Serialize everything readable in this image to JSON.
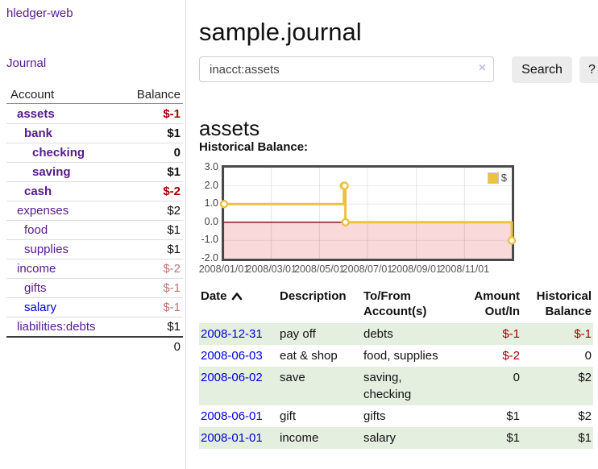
{
  "colors": {
    "purple_link": "#551a8b",
    "blue_link": "#0000dd",
    "negative": "#a00000",
    "negative_soft": "#b97676",
    "row_green": "#e4efdf",
    "series_yellow": "#edc240",
    "region_pink": "#f9d9d9",
    "zero_line": "#8c1717",
    "plot_border": "#4a4a4a",
    "grid": "#e4e4e4",
    "axis_text": "#545454"
  },
  "sidebar": {
    "title": "hledger-web",
    "nav_journal": "Journal",
    "table": {
      "account_header": "Account",
      "balance_header": "Balance",
      "rows": [
        {
          "name": "assets",
          "level": 1,
          "bold": true,
          "balance": "$-1",
          "bal_style": "neg"
        },
        {
          "name": "bank",
          "level": 2,
          "bold": true,
          "balance": "$1",
          "bal_style": ""
        },
        {
          "name": "checking",
          "level": 3,
          "bold": true,
          "balance": "0",
          "bal_style": ""
        },
        {
          "name": "saving",
          "level": 3,
          "bold": true,
          "balance": "$1",
          "bal_style": ""
        },
        {
          "name": "cash",
          "level": 2,
          "bold": true,
          "balance": "$-2",
          "bal_style": "neg"
        },
        {
          "name": "expenses",
          "level": 1,
          "bold": false,
          "balance": "$2",
          "bal_style": ""
        },
        {
          "name": "food",
          "level": 2,
          "bold": false,
          "balance": "$1",
          "bal_style": ""
        },
        {
          "name": "supplies",
          "level": 2,
          "bold": false,
          "balance": "$1",
          "bal_style": ""
        },
        {
          "name": "income",
          "level": 1,
          "bold": false,
          "balance": "$-2",
          "bal_style": "soft"
        },
        {
          "name": "gifts",
          "level": 2,
          "bold": false,
          "balance": "$-1",
          "bal_style": "soft"
        },
        {
          "name": "salary",
          "level": 2,
          "bold": false,
          "balance": "$-1",
          "bal_style": "soft",
          "link_color": "blue"
        },
        {
          "name": "liabilities:debts",
          "level": 1,
          "bold": false,
          "balance": "$1",
          "bal_style": ""
        }
      ],
      "total": "0"
    }
  },
  "header": {
    "title": "sample.journal"
  },
  "search": {
    "query": "inacct:assets",
    "clear_icon": "×",
    "button_label": "Search",
    "help_label": "?"
  },
  "main": {
    "account_title": "assets",
    "chart_label": "Historical Balance:"
  },
  "chart_data": {
    "type": "line",
    "step": true,
    "series": [
      {
        "name": "$",
        "color": "#edc240",
        "points": [
          [
            "2008-01-01",
            1
          ],
          [
            "2008-06-01",
            2
          ],
          [
            "2008-06-02",
            2
          ],
          [
            "2008-06-03",
            0
          ],
          [
            "2008-12-31",
            -1
          ]
        ]
      }
    ],
    "x_range": [
      "2008-01-01",
      "2008-12-31"
    ],
    "x_ticks": [
      "2008/01/01",
      "2008/03/01",
      "2008/05/01",
      "2008/07/01",
      "2008/09/01",
      "2008/11/01"
    ],
    "y_ticks": [
      3.0,
      2.0,
      1.0,
      0.0,
      -1.0,
      -2.0
    ],
    "ylim": [
      -2,
      3
    ],
    "legend": "$",
    "legend_position": "top-right",
    "grid": true,
    "negative_region_shaded": true
  },
  "register": {
    "headers": {
      "date": "Date",
      "description": "Description",
      "tofrom_line1": "To/From",
      "tofrom_line2": "Account(s)",
      "amount_line1": "Amount",
      "amount_line2": "Out/In",
      "hist_line1": "Historical",
      "hist_line2": "Balance"
    },
    "rows": [
      {
        "date": "2008-12-31",
        "description": "pay off",
        "accounts": "debts",
        "amount": "$-1",
        "amount_neg": true,
        "balance": "$-1",
        "balance_neg": true
      },
      {
        "date": "2008-06-03",
        "description": "eat & shop",
        "accounts": "food, supplies",
        "amount": "$-2",
        "amount_neg": true,
        "balance": "0",
        "balance_neg": false
      },
      {
        "date": "2008-06-02",
        "description": "save",
        "accounts": "saving,\nchecking",
        "amount": "0",
        "amount_neg": false,
        "balance": "$2",
        "balance_neg": false
      },
      {
        "date": "2008-06-01",
        "description": "gift",
        "accounts": "gifts",
        "amount": "$1",
        "amount_neg": false,
        "balance": "$2",
        "balance_neg": false
      },
      {
        "date": "2008-01-01",
        "description": "income",
        "accounts": "salary",
        "amount": "$1",
        "amount_neg": false,
        "balance": "$1",
        "balance_neg": false
      }
    ]
  }
}
